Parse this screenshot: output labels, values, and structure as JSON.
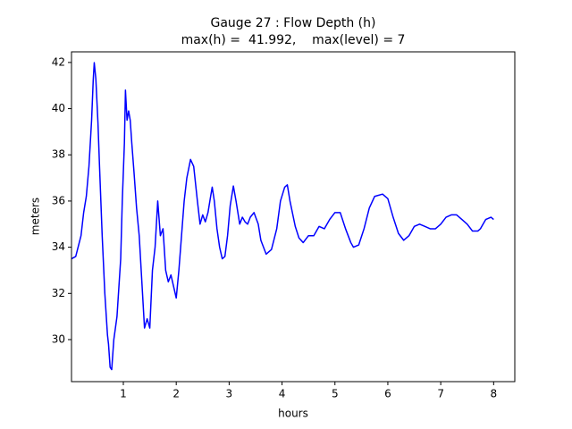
{
  "chart_data": {
    "type": "line",
    "title": "Gauge 27 : Flow Depth (h)",
    "subtitle": "max(h) =  41.992,    max(level) = 7",
    "xlabel": "hours",
    "ylabel": "meters",
    "xlim": [
      0.02,
      8.4
    ],
    "ylim": [
      28.18,
      42.46
    ],
    "xticks": [
      1,
      2,
      3,
      4,
      5,
      6,
      7,
      8
    ],
    "yticks": [
      30,
      32,
      34,
      36,
      38,
      40,
      42
    ],
    "grid": false,
    "x": [
      0.02,
      0.1,
      0.2,
      0.25,
      0.3,
      0.35,
      0.4,
      0.43,
      0.45,
      0.48,
      0.52,
      0.55,
      0.6,
      0.65,
      0.7,
      0.72,
      0.75,
      0.78,
      0.82,
      0.88,
      0.95,
      0.98,
      1.02,
      1.04,
      1.07,
      1.1,
      1.13,
      1.16,
      1.2,
      1.25,
      1.3,
      1.35,
      1.4,
      1.45,
      1.5,
      1.55,
      1.6,
      1.65,
      1.7,
      1.75,
      1.8,
      1.85,
      1.9,
      1.95,
      2.0,
      2.05,
      2.1,
      2.15,
      2.2,
      2.27,
      2.33,
      2.4,
      2.45,
      2.5,
      2.55,
      2.6,
      2.65,
      2.68,
      2.72,
      2.77,
      2.82,
      2.87,
      2.92,
      2.97,
      3.02,
      3.08,
      3.13,
      3.2,
      3.25,
      3.3,
      3.35,
      3.4,
      3.47,
      3.55,
      3.6,
      3.7,
      3.8,
      3.9,
      3.97,
      4.05,
      4.1,
      4.15,
      4.25,
      4.32,
      4.4,
      4.5,
      4.6,
      4.7,
      4.8,
      4.9,
      5.0,
      5.1,
      5.2,
      5.3,
      5.35,
      5.45,
      5.55,
      5.65,
      5.75,
      5.9,
      6.0,
      6.1,
      6.2,
      6.3,
      6.4,
      6.5,
      6.6,
      6.7,
      6.8,
      6.9,
      7.0,
      7.1,
      7.2,
      7.3,
      7.4,
      7.5,
      7.6,
      7.7,
      7.75,
      7.85,
      7.95,
      8.0
    ],
    "series": [
      {
        "name": "h",
        "color": "#0000ff",
        "values": [
          33.5,
          33.6,
          34.5,
          35.5,
          36.2,
          37.5,
          39.5,
          41.2,
          41.99,
          41.3,
          39.4,
          37.5,
          34.5,
          32,
          30.2,
          29.8,
          28.8,
          28.7,
          30.0,
          31.0,
          33.5,
          36.0,
          38.5,
          40.8,
          39.5,
          39.9,
          39.5,
          38.5,
          37.3,
          35.7,
          34.5,
          32.5,
          30.5,
          30.9,
          30.5,
          33.0,
          34.0,
          36.0,
          34.5,
          34.8,
          33.0,
          32.5,
          32.8,
          32.3,
          31.8,
          33.0,
          34.5,
          36.0,
          37.0,
          37.8,
          37.5,
          36.0,
          35.0,
          35.4,
          35.1,
          35.5,
          36.2,
          36.6,
          36.0,
          34.8,
          34.0,
          33.5,
          33.6,
          34.5,
          35.8,
          36.65,
          36.0,
          35.0,
          35.3,
          35.1,
          35.0,
          35.3,
          35.5,
          35.0,
          34.3,
          33.7,
          33.9,
          34.8,
          36.0,
          36.6,
          36.7,
          36.0,
          34.9,
          34.4,
          34.2,
          34.5,
          34.5,
          34.9,
          34.8,
          35.2,
          35.5,
          35.5,
          34.8,
          34.2,
          34.0,
          34.1,
          34.8,
          35.7,
          36.2,
          36.3,
          36.1,
          35.3,
          34.6,
          34.3,
          34.5,
          34.9,
          35.0,
          34.9,
          34.8,
          34.8,
          35.0,
          35.3,
          35.4,
          35.4,
          35.2,
          35.0,
          34.7,
          34.7,
          34.8,
          35.2,
          35.3,
          35.2
        ]
      }
    ]
  }
}
